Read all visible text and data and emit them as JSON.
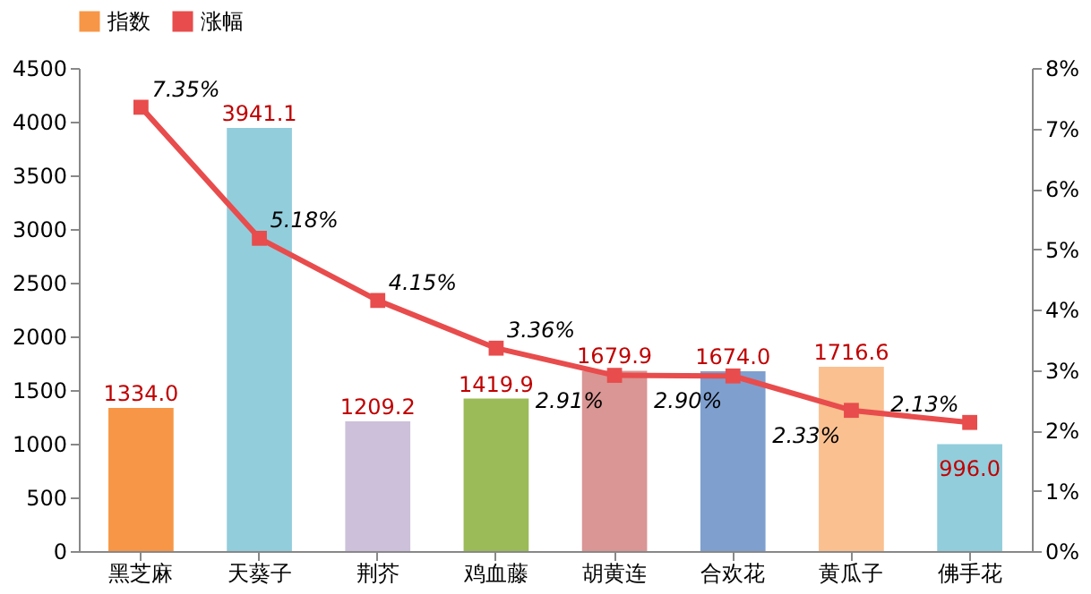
{
  "chart_data": {
    "type": "bar",
    "categories": [
      "黑芝麻",
      "天葵子",
      "荆芥",
      "鸡血藤",
      "胡黄连",
      "合欢花",
      "黄瓜子",
      "佛手花"
    ],
    "series": [
      {
        "name": "指数",
        "color": "#f79646",
        "colors": [
          "#f79646",
          "#92cddc",
          "#ccc0da",
          "#9bbb59",
          "#d99694",
          "#7f9fcf",
          "#fac090",
          "#92cddc"
        ],
        "values": [
          1334.0,
          3941.1,
          1209.2,
          1419.9,
          1679.9,
          1674.0,
          1716.6,
          996.0
        ],
        "value_labels": [
          "1334.0",
          "3941.1",
          "1209.2",
          "1419.9",
          "1679.9",
          "1674.0",
          "1716.6",
          "996.0"
        ]
      },
      {
        "name": "涨幅",
        "type": "line",
        "axis": "y2",
        "color": "#e84c4c",
        "values": [
          7.35,
          5.18,
          4.15,
          3.36,
          2.91,
          2.9,
          2.33,
          2.13
        ],
        "value_labels": [
          "7.35%",
          "5.18%",
          "4.15%",
          "3.36%",
          "2.91%",
          "2.90%",
          "2.33%",
          "2.13%"
        ]
      }
    ],
    "ylim": [
      0,
      4500
    ],
    "yticks": [
      0,
      500,
      1000,
      1500,
      2000,
      2500,
      3000,
      3500,
      4000,
      4500
    ],
    "y2lim": [
      0,
      8
    ],
    "y2ticks": [
      {
        "value": 0,
        "label": "0%"
      },
      {
        "value": 1,
        "label": "1%"
      },
      {
        "value": 2,
        "label": "2%"
      },
      {
        "value": 3,
        "label": "3%"
      },
      {
        "value": 4,
        "label": "4%"
      },
      {
        "value": 5,
        "label": "5%"
      },
      {
        "value": 6,
        "label": "6%"
      },
      {
        "value": 7,
        "label": "7%"
      },
      {
        "value": 8,
        "label": "8%"
      }
    ],
    "legend": "top",
    "marker": "square",
    "line_style": "solid",
    "grid": false
  }
}
